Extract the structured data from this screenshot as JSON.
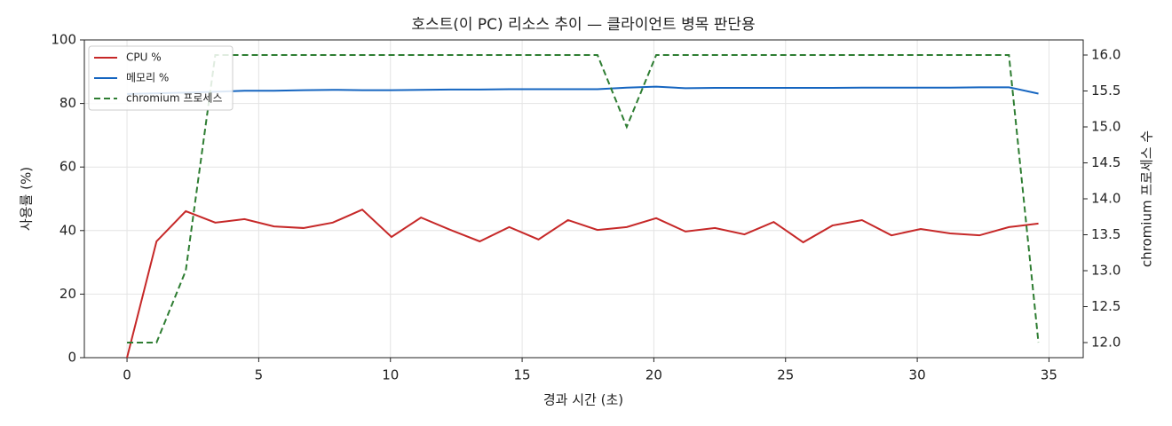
{
  "chart_data": {
    "type": "line",
    "title": "호스트(이 PC) 리소스 추이 — 클라이언트 병목 판단용",
    "xlabel": "경과 시간 (초)",
    "ylabel": "사용률 (%)",
    "y2label": "chromium 프로세스 수",
    "x": [
      0,
      1.12,
      2.23,
      3.35,
      4.46,
      5.58,
      6.7,
      7.81,
      8.93,
      10.04,
      11.16,
      12.28,
      13.39,
      14.51,
      15.62,
      16.74,
      17.86,
      18.97,
      20.09,
      21.2,
      22.32,
      23.44,
      24.55,
      25.67,
      26.78,
      27.9,
      29.02,
      30.13,
      31.25,
      32.36,
      33.48,
      34.6
    ],
    "series": [
      {
        "name": "CPU %",
        "color": "#c62828",
        "linestyle": "solid",
        "values": [
          0,
          36.6,
          46.1,
          42.5,
          43.6,
          41.3,
          40.8,
          42.5,
          46.6,
          38.0,
          44.1,
          40.2,
          36.6,
          41.1,
          37.2,
          43.3,
          40.2,
          41.1,
          43.9,
          39.7,
          40.8,
          38.8,
          42.7,
          36.3,
          41.6,
          43.3,
          38.5,
          40.5,
          39.1,
          38.5,
          41.1,
          42.2
        ]
      },
      {
        "name": "메모리 %",
        "color": "#1565c0",
        "linestyle": "solid",
        "values": [
          83.0,
          83.2,
          83.4,
          83.7,
          84.0,
          84.0,
          84.2,
          84.3,
          84.2,
          84.2,
          84.3,
          84.4,
          84.4,
          84.5,
          84.5,
          84.5,
          84.5,
          85.0,
          85.3,
          84.8,
          84.9,
          84.9,
          84.9,
          84.9,
          84.9,
          85.0,
          85.0,
          85.0,
          85.0,
          85.1,
          85.1,
          83.1
        ]
      },
      {
        "name": "chromium 프로세스",
        "color": "#2e7d32",
        "linestyle": "dashed",
        "axis": "y2",
        "values": [
          12,
          12,
          13,
          16,
          16,
          16,
          16,
          16,
          16,
          16,
          16,
          16,
          16,
          16,
          16,
          16,
          16,
          15,
          16,
          16,
          16,
          16,
          16,
          16,
          16,
          16,
          16,
          16,
          16,
          16,
          16,
          12
        ]
      }
    ],
    "xlim": [
      -1.62,
      36.3
    ],
    "xticks": [
      0,
      5,
      10,
      15,
      20,
      25,
      30,
      35
    ],
    "ylim": [
      0,
      100
    ],
    "yticks": [
      0,
      20,
      40,
      60,
      80,
      100
    ],
    "y2lim": [
      11.79,
      16.21
    ],
    "y2ticks": [
      {
        "value": 12,
        "label": "12.0"
      },
      12.5,
      {
        "value": 13,
        "label": "13.0"
      },
      13.5,
      {
        "value": 14,
        "label": "14.0"
      },
      14.5,
      {
        "value": 15,
        "label": "15.0"
      },
      15.5,
      {
        "value": 16,
        "label": "16.0"
      }
    ],
    "grid": true,
    "legend": "upper-left"
  }
}
